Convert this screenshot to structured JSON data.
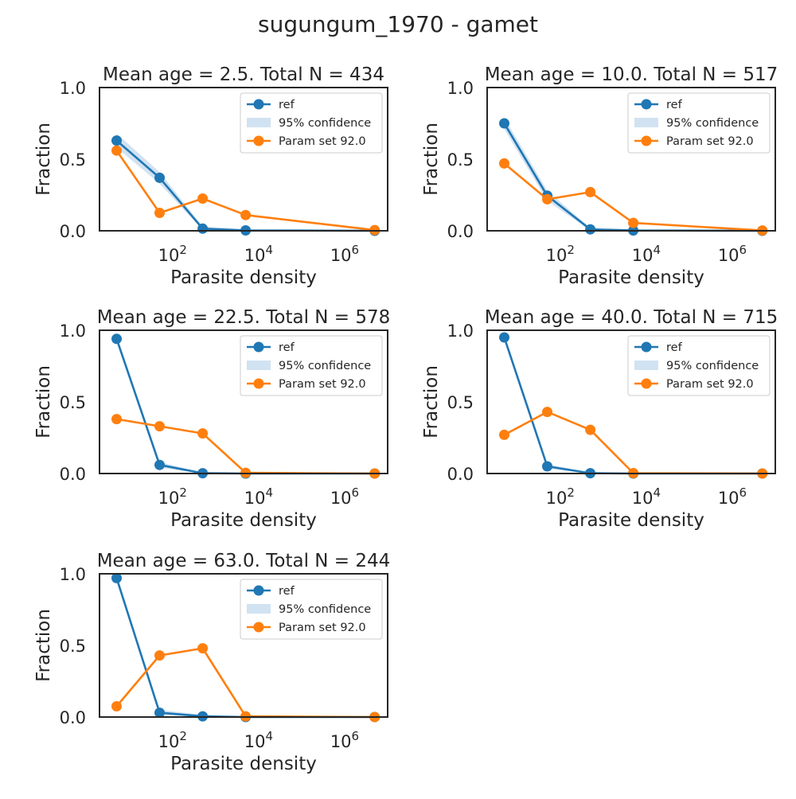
{
  "figure": {
    "title": "sugungum_1970 - gamet"
  },
  "axis_labels": {
    "x": "Parasite density",
    "y": "Fraction"
  },
  "y_tick_labels": [
    "0.0",
    "0.5",
    "1.0"
  ],
  "x_tick_labels": [
    {
      "value": 100,
      "base": "10",
      "exp": "2"
    },
    {
      "value": 10000,
      "base": "10",
      "exp": "4"
    },
    {
      "value": 1000000,
      "base": "10",
      "exp": "6"
    }
  ],
  "legend": {
    "ref": "ref",
    "ci": "95% confidence",
    "param": "Param set 92.0"
  },
  "colors": {
    "ref": "#1f77b4",
    "param": "#ff7f0e",
    "ci": "#c6dbef",
    "axes": "#262626"
  },
  "chart_data": [
    {
      "type": "line",
      "title": "Mean age = 2.5.  Total N = 434",
      "xlabel": "Parasite density",
      "ylabel": "Fraction",
      "xscale": "log",
      "xlim": [
        2,
        10000000
      ],
      "ylim": [
        0,
        1
      ],
      "legend_position": "upper right",
      "x": [
        5,
        50,
        500,
        5000,
        5000000
      ],
      "series": [
        {
          "name": "ref",
          "values": [
            0.63,
            0.37,
            0.015,
            0.003,
            0.0
          ],
          "ci_low": [
            0.58,
            0.33,
            0.005,
            0.0,
            0.0
          ],
          "ci_high": [
            0.68,
            0.41,
            0.03,
            0.01,
            0.0
          ]
        },
        {
          "name": "Param set 92.0",
          "values": [
            0.56,
            0.125,
            0.225,
            0.11,
            0.005
          ]
        }
      ]
    },
    {
      "type": "line",
      "title": "Mean age = 10.0.  Total N = 517",
      "xlabel": "Parasite density",
      "ylabel": "Fraction",
      "xscale": "log",
      "xlim": [
        2,
        10000000
      ],
      "ylim": [
        0,
        1
      ],
      "legend_position": "upper right",
      "x": [
        5,
        50,
        500,
        5000,
        5000000
      ],
      "series": [
        {
          "name": "ref",
          "values": [
            0.75,
            0.245,
            0.01,
            0.002,
            0.0
          ],
          "ci_low": [
            0.71,
            0.21,
            0.002,
            0.0,
            0.0
          ],
          "ci_high": [
            0.79,
            0.28,
            0.02,
            0.008,
            0.0
          ]
        },
        {
          "name": "Param set 92.0",
          "values": [
            0.47,
            0.22,
            0.27,
            0.055,
            0.002
          ]
        }
      ]
    },
    {
      "type": "line",
      "title": "Mean age = 22.5.  Total N = 578",
      "xlabel": "Parasite density",
      "ylabel": "Fraction",
      "xscale": "log",
      "xlim": [
        2,
        10000000
      ],
      "ylim": [
        0,
        1
      ],
      "legend_position": "upper right",
      "x": [
        5,
        50,
        500,
        5000,
        5000000
      ],
      "series": [
        {
          "name": "ref",
          "values": [
            0.94,
            0.06,
            0.002,
            0.0,
            0.0
          ],
          "ci_low": [
            0.92,
            0.04,
            0.0,
            0.0,
            0.0
          ],
          "ci_high": [
            0.96,
            0.08,
            0.006,
            0.0,
            0.0
          ]
        },
        {
          "name": "Param set 92.0",
          "values": [
            0.38,
            0.33,
            0.28,
            0.005,
            0.0
          ]
        }
      ]
    },
    {
      "type": "line",
      "title": "Mean age = 40.0.  Total N = 715",
      "xlabel": "Parasite density",
      "ylabel": "Fraction",
      "xscale": "log",
      "xlim": [
        2,
        10000000
      ],
      "ylim": [
        0,
        1
      ],
      "legend_position": "upper right",
      "x": [
        5,
        50,
        500,
        5000,
        5000000
      ],
      "series": [
        {
          "name": "ref",
          "values": [
            0.95,
            0.05,
            0.002,
            0.0,
            0.0
          ],
          "ci_low": [
            0.93,
            0.035,
            0.0,
            0.0,
            0.0
          ],
          "ci_high": [
            0.97,
            0.065,
            0.006,
            0.0,
            0.0
          ]
        },
        {
          "name": "Param set 92.0",
          "values": [
            0.27,
            0.43,
            0.305,
            0.003,
            0.0
          ]
        }
      ]
    },
    {
      "type": "line",
      "title": "Mean age = 63.0.  Total N = 244",
      "xlabel": "Parasite density",
      "ylabel": "Fraction",
      "xscale": "log",
      "xlim": [
        2,
        10000000
      ],
      "ylim": [
        0,
        1
      ],
      "legend_position": "upper right",
      "x": [
        5,
        50,
        500,
        5000,
        5000000
      ],
      "series": [
        {
          "name": "ref",
          "values": [
            0.97,
            0.03,
            0.005,
            0.0,
            0.0
          ],
          "ci_low": [
            0.95,
            0.015,
            0.0,
            0.0,
            0.0
          ],
          "ci_high": [
            0.99,
            0.05,
            0.015,
            0.0,
            0.0
          ]
        },
        {
          "name": "Param set 92.0",
          "values": [
            0.075,
            0.43,
            0.48,
            0.005,
            0.0
          ]
        }
      ]
    }
  ]
}
